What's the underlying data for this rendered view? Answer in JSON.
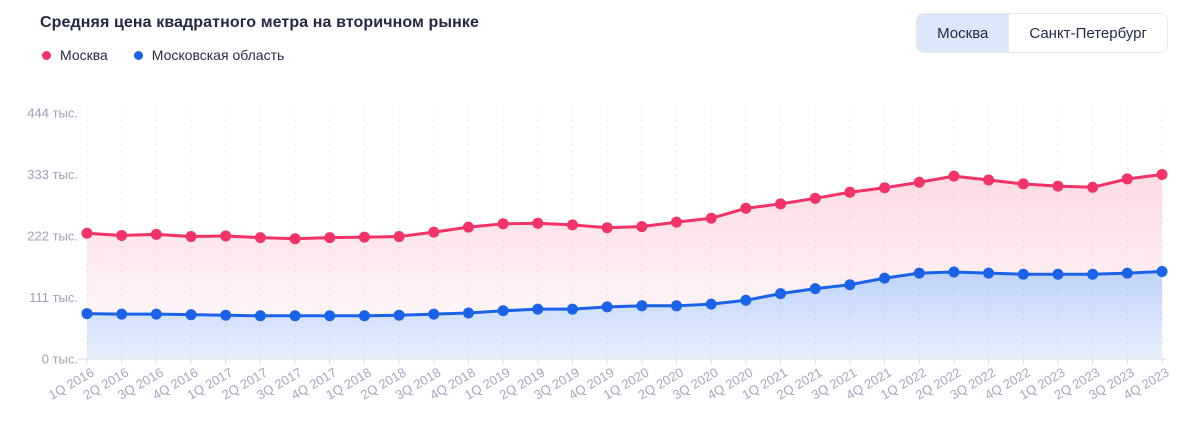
{
  "header": {
    "title": "Средняя цена квадратного метра на вторичном рынке",
    "toggle": {
      "options": [
        {
          "label": "Москва",
          "selected": true
        },
        {
          "label": "Санкт-Петербург",
          "selected": false
        }
      ]
    }
  },
  "legend": [
    {
      "label": "Москва",
      "color": "#f1336a"
    },
    {
      "label": "Московская область",
      "color": "#1a63e8"
    }
  ],
  "colors": {
    "moscow_line": "#f1336a",
    "region_line": "#1a63e8",
    "toggle_selected_bg": "#dbe8fa",
    "grid": "#e9eaf0",
    "axis_line": "#d9dce6",
    "y_axis_text": "#9ca2b8",
    "x_axis_text": "#a3a8bf"
  },
  "chart_data": {
    "type": "area",
    "title": "Средняя цена квадратного метра на вторичном рынке",
    "x": [
      "1Q 2016",
      "2Q 2016",
      "3Q 2016",
      "4Q 2016",
      "1Q 2017",
      "2Q 2017",
      "3Q 2017",
      "4Q 2017",
      "1Q 2018",
      "2Q 2018",
      "3Q 2018",
      "4Q 2018",
      "1Q 2019",
      "2Q 2019",
      "3Q 2019",
      "4Q 2019",
      "1Q 2020",
      "2Q 2020",
      "3Q 2020",
      "4Q 2020",
      "1Q 2021",
      "2Q 2021",
      "3Q 2021",
      "4Q 2021",
      "1Q 2022",
      "2Q 2022",
      "3Q 2022",
      "4Q 2022",
      "1Q 2023",
      "2Q 2023",
      "3Q 2023",
      "4Q 2023"
    ],
    "series": [
      {
        "key": "moscow",
        "name": "Москва",
        "color": "#f1336a",
        "values": [
          227,
          223,
          225,
          221,
          222,
          219,
          217,
          219,
          220,
          221,
          229,
          238,
          244,
          245,
          242,
          237,
          239,
          247,
          254,
          272,
          280,
          290,
          301,
          309,
          319,
          330,
          323,
          316,
          312,
          310,
          325,
          333
        ]
      },
      {
        "key": "moscow-region",
        "name": "Московская область",
        "color": "#1a63e8",
        "values": [
          82,
          81,
          81,
          80,
          79,
          78,
          78,
          78,
          78,
          79,
          81,
          83,
          87,
          90,
          90,
          94,
          96,
          96,
          99,
          106,
          118,
          127,
          134,
          146,
          155,
          157,
          155,
          153,
          153,
          153,
          155,
          158
        ]
      }
    ],
    "yunit": "тыс.",
    "yticks": [
      0,
      111,
      222,
      333,
      444
    ],
    "ytick_labels": [
      "0 тыс.",
      "111 тыс.",
      "222 тыс.",
      "333 тыс.",
      "444 тыс."
    ],
    "ylim": [
      0,
      444
    ],
    "grid": "vertical-dashed",
    "legend_position": "top-left"
  }
}
